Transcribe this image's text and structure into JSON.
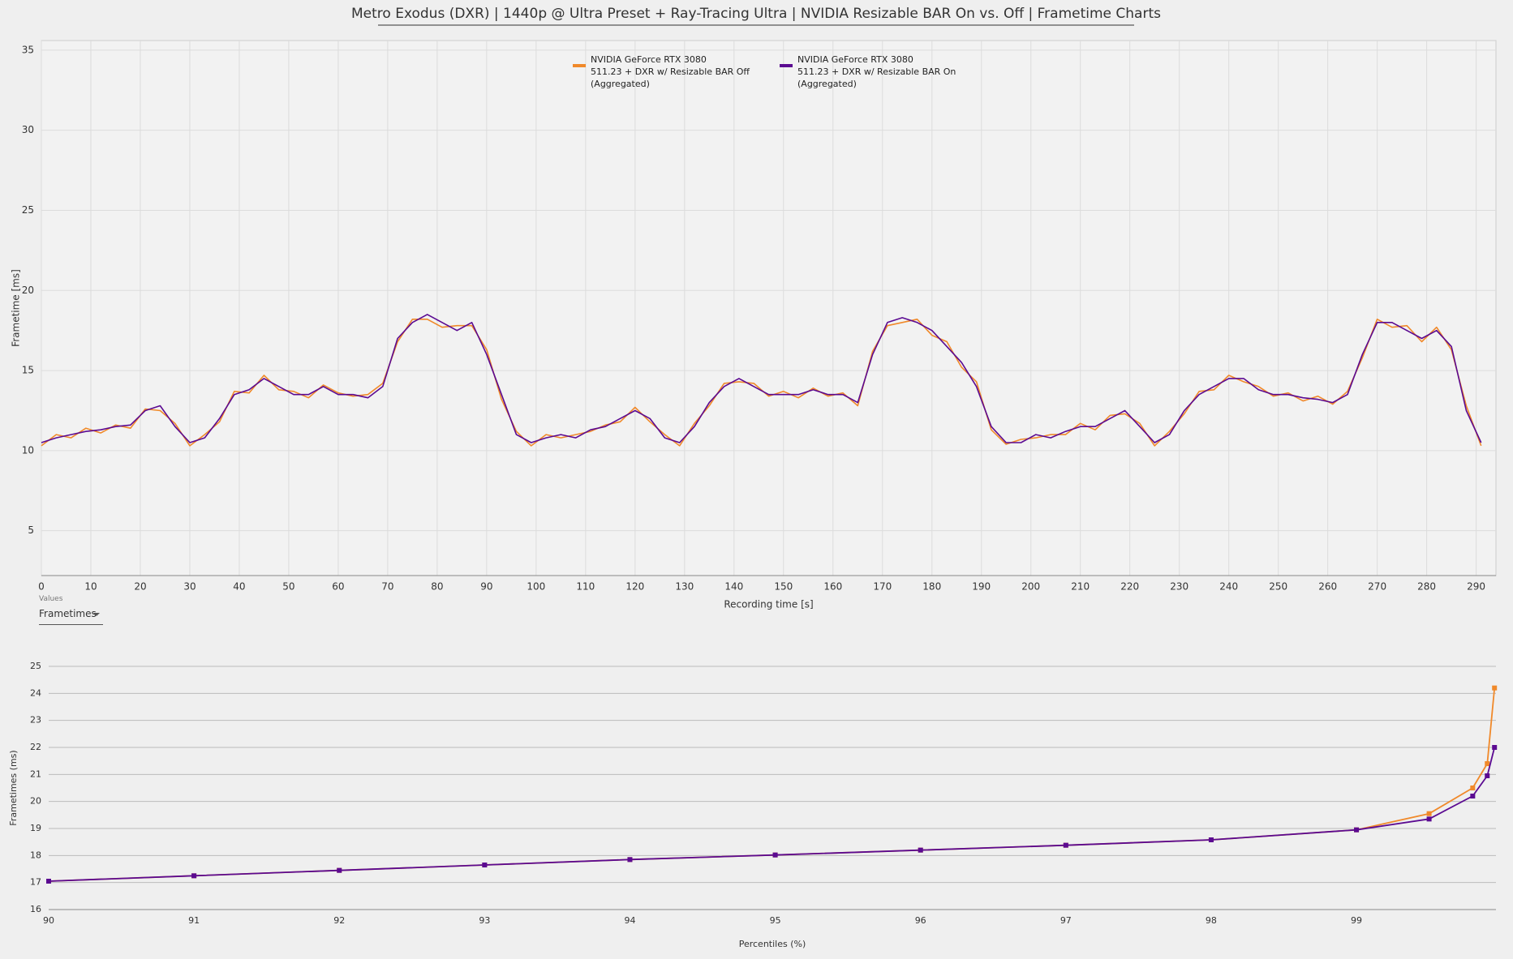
{
  "chart_data": [
    {
      "type": "line",
      "title": "Metro Exodus (DXR) | 1440p @ Ultra Preset + Ray-Tracing Ultra | NVIDIA Resizable BAR On vs. Off | Frametime Charts",
      "x_label": "Recording time [s]",
      "y_label": "Frametime [ms]",
      "xlim": [
        0,
        294
      ],
      "ylim": [
        2.2,
        35.6
      ],
      "xticks": [
        0,
        10,
        20,
        30,
        40,
        50,
        60,
        70,
        80,
        90,
        100,
        110,
        120,
        130,
        140,
        150,
        160,
        170,
        180,
        190,
        200,
        210,
        220,
        230,
        240,
        250,
        260,
        270,
        280,
        290
      ],
      "yticks": [
        5,
        10,
        15,
        20,
        25,
        30,
        35
      ],
      "grid": {
        "x": true,
        "y": true
      },
      "markers": false,
      "x": [
        0,
        3,
        6,
        9,
        12,
        15,
        18,
        21,
        24,
        27,
        30,
        33,
        36,
        39,
        42,
        45,
        48,
        51,
        54,
        57,
        60,
        63,
        66,
        69,
        72,
        75,
        78,
        81,
        84,
        87,
        90,
        93,
        96,
        99,
        102,
        105,
        108,
        111,
        114,
        117,
        120,
        123,
        126,
        129,
        132,
        135,
        138,
        141,
        144,
        147,
        150,
        153,
        156,
        159,
        162,
        165,
        168,
        171,
        174,
        177,
        180,
        183,
        186,
        189,
        192,
        195,
        198,
        201,
        204,
        207,
        210,
        213,
        216,
        219,
        222,
        225,
        228,
        231,
        234,
        237,
        240,
        243,
        246,
        249,
        252,
        255,
        258,
        261,
        264,
        267,
        270,
        273,
        276,
        279,
        282,
        285,
        288,
        291
      ],
      "series": [
        {
          "name": "NVIDIA GeForce RTX 3080\n511.23 + DXR w/ Resizable BAR Off\n(Aggregated)",
          "color": "#f0892a",
          "values": [
            10.3,
            11,
            10.8,
            11.4,
            11.1,
            11.6,
            11.4,
            12.6,
            12.5,
            11.7,
            10.3,
            11,
            11.8,
            13.7,
            13.6,
            14.7,
            13.8,
            13.7,
            13.3,
            14.1,
            13.6,
            13.4,
            13.5,
            14.2,
            16.8,
            18.2,
            18.2,
            17.7,
            17.8,
            17.8,
            16.3,
            13.2,
            11.2,
            10.3,
            11,
            10.8,
            11,
            11.2,
            11.6,
            11.8,
            12.7,
            11.8,
            11,
            10.3,
            11.7,
            12.8,
            14.2,
            14.3,
            14.2,
            13.4,
            13.7,
            13.3,
            13.9,
            13.4,
            13.6,
            12.8,
            16.2,
            17.8,
            18,
            18.2,
            17.2,
            16.8,
            15.2,
            14.3,
            11.3,
            10.4,
            10.7,
            10.8,
            11,
            11,
            11.7,
            11.3,
            12.2,
            12.3,
            11.7,
            10.3,
            11.2,
            12.3,
            13.7,
            13.8,
            14.7,
            14.3,
            14,
            13.4,
            13.6,
            13.1,
            13.4,
            12.9,
            13.7,
            15.8,
            18.2,
            17.7,
            17.8,
            16.8,
            17.7,
            16.3,
            12.8,
            10.3
          ]
        },
        {
          "name": "NVIDIA GeForce RTX 3080\n511.23 + DXR w/ Resizable BAR On\n(Aggregated)",
          "color": "#5b0a91",
          "values": [
            10.5,
            10.8,
            11,
            11.2,
            11.3,
            11.5,
            11.6,
            12.5,
            12.8,
            11.5,
            10.5,
            10.8,
            12,
            13.5,
            13.8,
            14.5,
            14,
            13.5,
            13.5,
            14,
            13.5,
            13.5,
            13.3,
            14,
            17,
            18,
            18.5,
            18,
            17.5,
            18,
            16,
            13.5,
            11,
            10.5,
            10.8,
            11,
            10.8,
            11.3,
            11.5,
            12,
            12.5,
            12,
            10.8,
            10.5,
            11.5,
            13,
            14,
            14.5,
            14,
            13.5,
            13.5,
            13.5,
            13.8,
            13.5,
            13.5,
            13,
            16,
            18,
            18.3,
            18,
            17.5,
            16.5,
            15.5,
            14,
            11.5,
            10.5,
            10.5,
            11,
            10.8,
            11.2,
            11.5,
            11.5,
            12,
            12.5,
            11.5,
            10.5,
            11,
            12.5,
            13.5,
            14,
            14.5,
            14.5,
            13.8,
            13.5,
            13.5,
            13.3,
            13.2,
            13,
            13.5,
            16,
            18,
            18,
            17.5,
            17,
            17.5,
            16.5,
            12.5,
            10.5
          ]
        }
      ]
    },
    {
      "type": "line",
      "x_label": "Percentiles (%)",
      "y_label": "Frametimes (ms)",
      "xlim": [
        90,
        99.96
      ],
      "ylim": [
        16,
        25
      ],
      "xticks": [
        90,
        91,
        92,
        93,
        94,
        95,
        96,
        97,
        98,
        99
      ],
      "yticks": [
        16,
        17,
        18,
        19,
        20,
        21,
        22,
        23,
        24,
        25
      ],
      "grid": {
        "x": false,
        "y": true
      },
      "markers": true,
      "x": [
        90,
        91,
        92,
        93,
        94,
        95,
        96,
        97,
        98,
        99,
        99.5,
        99.8,
        99.9,
        99.95
      ],
      "series": [
        {
          "name": "NVIDIA GeForce RTX 3080\n511.23 + DXR w/ Resizable BAR Off\n(Aggregated)",
          "color": "#f0892a",
          "values": [
            17.05,
            17.25,
            17.45,
            17.65,
            17.85,
            18.02,
            18.2,
            18.38,
            18.58,
            18.95,
            19.55,
            20.5,
            21.4,
            24.2
          ]
        },
        {
          "name": "NVIDIA GeForce RTX 3080\n511.23 + DXR w/ Resizable BAR On\n(Aggregated)",
          "color": "#5b0a91",
          "values": [
            17.05,
            17.25,
            17.45,
            17.65,
            17.85,
            18.02,
            18.2,
            18.38,
            18.58,
            18.95,
            19.35,
            20.2,
            20.95,
            22.0
          ]
        }
      ]
    }
  ],
  "controls": {
    "label": "Values",
    "selected": "Frametimes"
  }
}
